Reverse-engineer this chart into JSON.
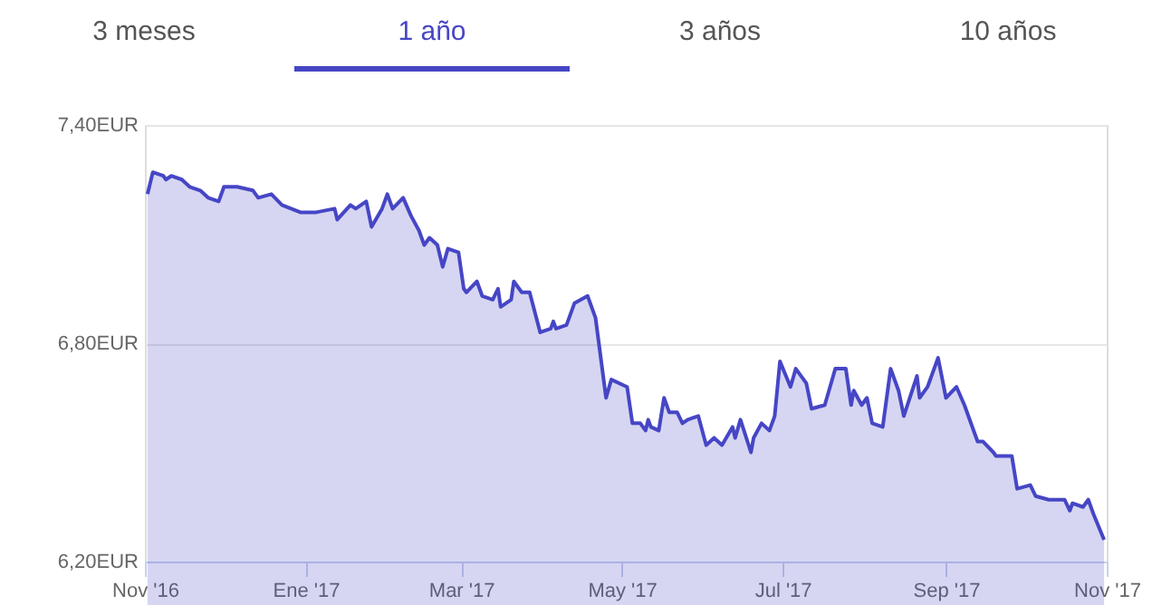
{
  "chart_data": {
    "type": "area",
    "annotations": [
      "3 meses",
      "1 año",
      "3 años",
      "10 años"
    ],
    "x": [
      "2016-11-02",
      "2016-11-04",
      "2016-11-08",
      "2016-11-09",
      "2016-11-11",
      "2016-11-15",
      "2016-11-18",
      "2016-11-22",
      "2016-11-25",
      "2016-11-29",
      "2016-12-01",
      "2016-12-06",
      "2016-12-12",
      "2016-12-14",
      "2016-12-19",
      "2016-12-23",
      "2016-12-30",
      "2017-01-05",
      "2017-01-12",
      "2017-01-13",
      "2017-01-18",
      "2017-01-20",
      "2017-01-24",
      "2017-01-26",
      "2017-01-30",
      "2017-02-01",
      "2017-02-03",
      "2017-02-07",
      "2017-02-10",
      "2017-02-13",
      "2017-02-15",
      "2017-02-17",
      "2017-02-20",
      "2017-02-22",
      "2017-02-24",
      "2017-02-28",
      "2017-03-02",
      "2017-03-03",
      "2017-03-07",
      "2017-03-09",
      "2017-03-13",
      "2017-03-15",
      "2017-03-16",
      "2017-03-20",
      "2017-03-21",
      "2017-03-24",
      "2017-03-27",
      "2017-03-31",
      "2017-04-04",
      "2017-04-05",
      "2017-04-06",
      "2017-04-10",
      "2017-04-13",
      "2017-04-18",
      "2017-04-21",
      "2017-04-25",
      "2017-04-27",
      "2017-05-03",
      "2017-05-05",
      "2017-05-08",
      "2017-05-10",
      "2017-05-11",
      "2017-05-12",
      "2017-05-15",
      "2017-05-17",
      "2017-05-19",
      "2017-05-22",
      "2017-05-24",
      "2017-05-26",
      "2017-05-30",
      "2017-06-02",
      "2017-06-05",
      "2017-06-08",
      "2017-06-12",
      "2017-06-13",
      "2017-06-15",
      "2017-06-19",
      "2017-06-20",
      "2017-06-23",
      "2017-06-26",
      "2017-06-28",
      "2017-06-30",
      "2017-07-04",
      "2017-07-06",
      "2017-07-10",
      "2017-07-12",
      "2017-07-17",
      "2017-07-19",
      "2017-07-21",
      "2017-07-25",
      "2017-07-27",
      "2017-07-28",
      "2017-07-31",
      "2017-08-02",
      "2017-08-04",
      "2017-08-08",
      "2017-08-11",
      "2017-08-14",
      "2017-08-16",
      "2017-08-21",
      "2017-08-22",
      "2017-08-25",
      "2017-08-29",
      "2017-09-01",
      "2017-09-05",
      "2017-09-08",
      "2017-09-13",
      "2017-09-15",
      "2017-09-19",
      "2017-09-20",
      "2017-09-26",
      "2017-09-28",
      "2017-10-03",
      "2017-10-05",
      "2017-10-10",
      "2017-10-16",
      "2017-10-18",
      "2017-10-19",
      "2017-10-23",
      "2017-10-25",
      "2017-10-27",
      "2017-10-31"
    ],
    "series": [
      {
        "color": "#4646c6",
        "values": [
          7.21,
          7.27,
          7.26,
          7.25,
          7.26,
          7.25,
          7.23,
          7.22,
          7.2,
          7.19,
          7.23,
          7.23,
          7.22,
          7.2,
          7.21,
          7.18,
          7.16,
          7.16,
          7.17,
          7.14,
          7.18,
          7.17,
          7.19,
          7.12,
          7.17,
          7.21,
          7.17,
          7.2,
          7.15,
          7.11,
          7.07,
          7.09,
          7.07,
          7.01,
          7.06,
          7.05,
          6.95,
          6.94,
          6.97,
          6.93,
          6.92,
          6.95,
          6.9,
          6.92,
          6.97,
          6.94,
          6.94,
          6.83,
          6.84,
          6.86,
          6.84,
          6.85,
          6.91,
          6.93,
          6.87,
          6.65,
          6.7,
          6.68,
          6.58,
          6.58,
          6.56,
          6.59,
          6.57,
          6.56,
          6.65,
          6.61,
          6.61,
          6.58,
          6.59,
          6.6,
          6.52,
          6.54,
          6.52,
          6.57,
          6.54,
          6.59,
          6.5,
          6.54,
          6.58,
          6.56,
          6.6,
          6.75,
          6.68,
          6.73,
          6.69,
          6.62,
          6.63,
          6.68,
          6.73,
          6.73,
          6.63,
          6.67,
          6.63,
          6.65,
          6.58,
          6.57,
          6.73,
          6.67,
          6.6,
          6.71,
          6.65,
          6.68,
          6.76,
          6.65,
          6.68,
          6.63,
          6.53,
          6.53,
          6.5,
          6.49,
          6.49,
          6.4,
          6.41,
          6.38,
          6.37,
          6.37,
          6.34,
          6.36,
          6.35,
          6.37,
          6.33,
          6.26
        ]
      }
    ],
    "xlim": [
      "2016-11-01",
      "2017-11-01"
    ],
    "xticks": [
      {
        "value": "2016-11-01",
        "label": "Nov '16"
      },
      {
        "value": "2017-01-01",
        "label": "Ene '17"
      },
      {
        "value": "2017-03-01",
        "label": "Mar '17"
      },
      {
        "value": "2017-05-01",
        "label": "May '17"
      },
      {
        "value": "2017-07-01",
        "label": "Jul '17"
      },
      {
        "value": "2017-09-01",
        "label": "Sep '17"
      },
      {
        "value": "2017-11-01",
        "label": "Nov '17"
      }
    ],
    "ylim": [
      6.2,
      7.4
    ],
    "yticks": [
      {
        "value": 6.2,
        "label": "6,20EUR"
      },
      {
        "value": 6.8,
        "label": "6,80EUR"
      },
      {
        "value": 7.4,
        "label": "7,40EUR"
      }
    ],
    "grid": "y",
    "marker": "none",
    "line_style": "solid"
  }
}
